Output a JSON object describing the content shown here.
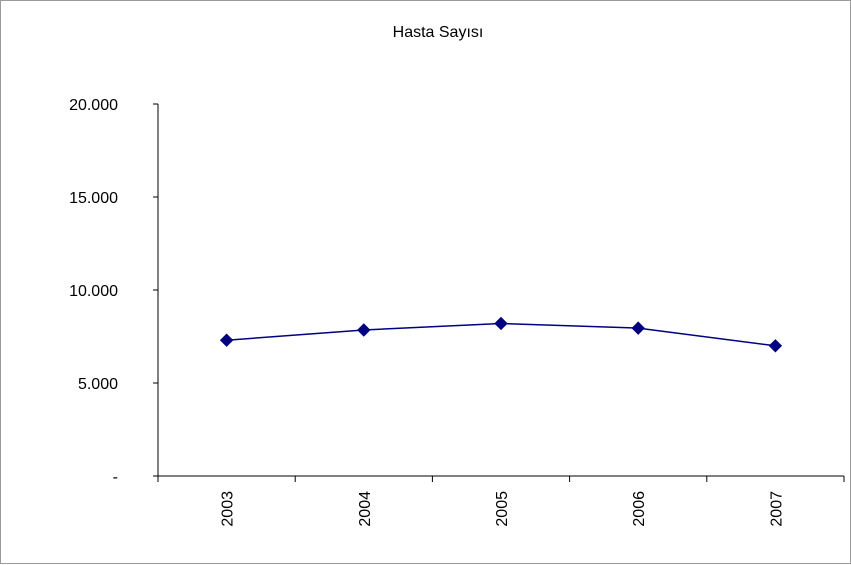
{
  "chart_data": {
    "type": "line",
    "title": "Hasta Sayısı",
    "xlabel": "",
    "ylabel": "",
    "categories": [
      "2003",
      "2004",
      "2005",
      "2006",
      "2007"
    ],
    "series": [
      {
        "values": [
          7300,
          7850,
          8200,
          7950,
          7000
        ]
      }
    ],
    "ylim": [
      0,
      20000
    ],
    "yticks": [
      0,
      5000,
      10000,
      15000,
      20000
    ],
    "ytick_labels": [
      "-",
      "5.000",
      "10.000",
      "15.000",
      "20.000"
    ],
    "grid": false,
    "legend": "none",
    "line_color": "#000080",
    "marker": "diamond"
  }
}
